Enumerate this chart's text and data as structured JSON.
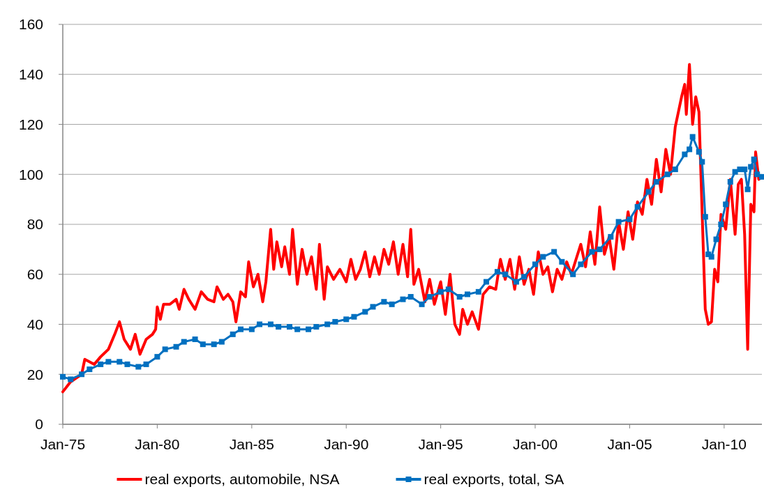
{
  "chart_data": {
    "type": "line",
    "xlim": [
      "1975-01",
      "2012-01"
    ],
    "ylim": [
      0,
      160
    ],
    "yticks": [
      0,
      20,
      40,
      60,
      80,
      100,
      120,
      140,
      160
    ],
    "xticks": [
      {
        "value": "1975-01",
        "label": "Jan-75"
      },
      {
        "value": "1980-01",
        "label": "Jan-80"
      },
      {
        "value": "1985-01",
        "label": "Jan-85"
      },
      {
        "value": "1990-01",
        "label": "Jan-90"
      },
      {
        "value": "1995-01",
        "label": "Jan-95"
      },
      {
        "value": "2000-01",
        "label": "Jan-00"
      },
      {
        "value": "2005-01",
        "label": "Jan-05"
      },
      {
        "value": "2010-01",
        "label": "Jan-10"
      }
    ],
    "grid": "y",
    "legend": "bottom",
    "series": [
      {
        "name": "real exports, automobile, NSA",
        "color": "#ff0000",
        "marker": "none",
        "x": [
          "1975-01",
          "1975-06",
          "1976-01",
          "1976-03",
          "1976-09",
          "1977-01",
          "1977-06",
          "1977-10",
          "1978-01",
          "1978-04",
          "1978-08",
          "1978-11",
          "1979-02",
          "1979-06",
          "1979-10",
          "1979-12",
          "1980-01",
          "1980-03",
          "1980-05",
          "1980-09",
          "1981-01",
          "1981-03",
          "1981-06",
          "1981-09",
          "1982-01",
          "1982-05",
          "1982-09",
          "1983-01",
          "1983-03",
          "1983-07",
          "1983-10",
          "1984-01",
          "1984-03",
          "1984-06",
          "1984-09",
          "1984-11",
          "1985-02",
          "1985-05",
          "1985-08",
          "1985-10",
          "1986-01",
          "1986-03",
          "1986-05",
          "1986-08",
          "1986-10",
          "1987-01",
          "1987-03",
          "1987-06",
          "1987-09",
          "1987-12",
          "1988-03",
          "1988-06",
          "1988-08",
          "1988-11",
          "1989-01",
          "1989-05",
          "1989-09",
          "1990-01",
          "1990-04",
          "1990-07",
          "1990-10",
          "1991-01",
          "1991-04",
          "1991-07",
          "1991-10",
          "1992-01",
          "1992-04",
          "1992-07",
          "1992-10",
          "1993-01",
          "1993-04",
          "1993-06",
          "1993-08",
          "1993-11",
          "1994-03",
          "1994-06",
          "1994-09",
          "1995-01",
          "1995-04",
          "1995-07",
          "1995-10",
          "1996-01",
          "1996-03",
          "1996-06",
          "1996-09",
          "1997-01",
          "1997-04",
          "1997-08",
          "1997-12",
          "1998-03",
          "1998-06",
          "1998-09",
          "1998-12",
          "1999-03",
          "1999-06",
          "1999-09",
          "1999-12",
          "2000-03",
          "2000-06",
          "2000-09",
          "2000-12",
          "2001-03",
          "2001-06",
          "2001-09",
          "2001-12",
          "2002-03",
          "2002-06",
          "2002-09",
          "2002-12",
          "2003-03",
          "2003-06",
          "2003-09",
          "2003-12",
          "2004-03",
          "2004-06",
          "2004-09",
          "2004-12",
          "2005-03",
          "2005-06",
          "2005-09",
          "2005-12",
          "2006-03",
          "2006-06",
          "2006-09",
          "2006-12",
          "2007-03",
          "2007-06",
          "2007-10",
          "2007-12",
          "2008-01",
          "2008-03",
          "2008-05",
          "2008-07",
          "2008-09",
          "2008-11",
          "2009-01",
          "2009-03",
          "2009-05",
          "2009-07",
          "2009-09",
          "2009-11",
          "2010-02",
          "2010-05",
          "2010-08",
          "2010-10",
          "2010-12",
          "2011-02",
          "2011-04",
          "2011-06",
          "2011-08",
          "2011-09",
          "2011-11",
          "2012-01"
        ],
        "values": [
          13,
          17,
          20,
          26,
          24,
          27,
          30,
          36,
          41,
          34,
          30,
          36,
          28,
          34,
          36,
          38,
          47,
          42,
          48,
          48,
          50,
          46,
          54,
          50,
          46,
          53,
          50,
          49,
          55,
          50,
          52,
          49,
          41,
          53,
          51,
          65,
          55,
          60,
          49,
          57,
          78,
          62,
          73,
          63,
          71,
          60,
          78,
          56,
          70,
          60,
          67,
          54,
          72,
          50,
          63,
          58,
          62,
          57,
          66,
          58,
          62,
          69,
          59,
          67,
          60,
          70,
          64,
          73,
          60,
          72,
          59,
          78,
          56,
          62,
          49,
          58,
          48,
          57,
          44,
          60,
          40,
          36,
          46,
          40,
          45,
          38,
          52,
          55,
          54,
          66,
          58,
          66,
          54,
          67,
          56,
          62,
          52,
          69,
          60,
          63,
          53,
          62,
          58,
          65,
          60,
          66,
          72,
          63,
          77,
          64,
          87,
          68,
          75,
          62,
          81,
          70,
          85,
          74,
          89,
          84,
          98,
          88,
          106,
          93,
          110,
          100,
          119,
          131,
          136,
          124,
          144,
          120,
          131,
          125,
          85,
          46,
          40,
          41,
          62,
          57,
          84,
          78,
          98,
          76,
          96,
          98,
          76,
          30,
          88,
          85,
          109,
          98,
          99
        ]
      },
      {
        "name": "real exports, total, SA",
        "color": "#0070c0",
        "marker": "square",
        "x": [
          "1975-01",
          "1975-06",
          "1976-01",
          "1976-06",
          "1977-01",
          "1977-06",
          "1978-01",
          "1978-06",
          "1979-01",
          "1979-06",
          "1980-01",
          "1980-06",
          "1981-01",
          "1981-06",
          "1982-01",
          "1982-06",
          "1983-01",
          "1983-06",
          "1984-01",
          "1984-06",
          "1985-01",
          "1985-06",
          "1986-01",
          "1986-06",
          "1987-01",
          "1987-06",
          "1988-01",
          "1988-06",
          "1989-01",
          "1989-06",
          "1990-01",
          "1990-06",
          "1991-01",
          "1991-06",
          "1992-01",
          "1992-06",
          "1993-01",
          "1993-06",
          "1994-01",
          "1994-06",
          "1995-01",
          "1995-06",
          "1996-01",
          "1996-06",
          "1997-01",
          "1997-06",
          "1998-01",
          "1998-06",
          "1999-01",
          "1999-06",
          "2000-01",
          "2000-06",
          "2001-01",
          "2001-06",
          "2002-01",
          "2002-06",
          "2003-01",
          "2003-06",
          "2004-01",
          "2004-06",
          "2005-01",
          "2005-06",
          "2006-01",
          "2006-06",
          "2007-01",
          "2007-06",
          "2007-12",
          "2008-03",
          "2008-05",
          "2008-09",
          "2008-11",
          "2009-01",
          "2009-03",
          "2009-05",
          "2009-08",
          "2009-11",
          "2010-02",
          "2010-05",
          "2010-08",
          "2010-11",
          "2011-02",
          "2011-04",
          "2011-06",
          "2011-08",
          "2011-10",
          "2012-01"
        ],
        "values": [
          19,
          18,
          20,
          22,
          24,
          25,
          25,
          24,
          23,
          24,
          27,
          30,
          31,
          33,
          34,
          32,
          32,
          33,
          36,
          38,
          38,
          40,
          40,
          39,
          39,
          38,
          38,
          39,
          40,
          41,
          42,
          43,
          45,
          47,
          49,
          48,
          50,
          51,
          48,
          51,
          53,
          54,
          51,
          52,
          53,
          57,
          61,
          60,
          57,
          59,
          64,
          67,
          69,
          65,
          60,
          64,
          69,
          70,
          75,
          81,
          82,
          87,
          93,
          97,
          100,
          102,
          108,
          110,
          115,
          109,
          105,
          83,
          68,
          67,
          74,
          80,
          88,
          97,
          101,
          102,
          102,
          94,
          103,
          106,
          100,
          99
        ]
      }
    ]
  }
}
